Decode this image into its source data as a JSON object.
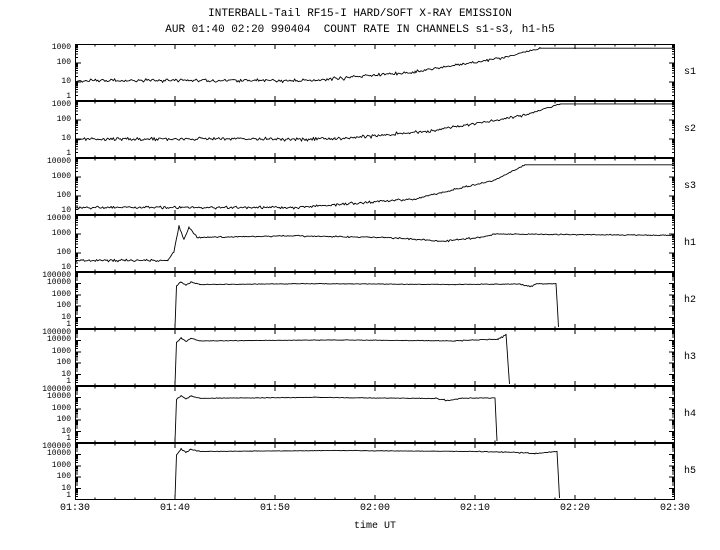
{
  "chart_data": {
    "type": "line",
    "y_scale": "log",
    "title": "INTERBALL-Tail RF15-I HARD/SOFT X-RAY EMISSION",
    "subtitle": "AUR 01:40 02:20 990404  COUNT RATE IN CHANNELS s1-s3, h1-h5",
    "line_color": "#000000",
    "background": "#ffffff",
    "x_axis": {
      "label": "time UT",
      "start_time": "01:30",
      "range_minutes": [
        0,
        60
      ],
      "ticks": [
        "01:30",
        "01:40",
        "01:50",
        "02:00",
        "02:10",
        "02:20",
        "02:30"
      ],
      "tick_minutes": [
        0,
        10,
        20,
        30,
        40,
        50,
        60
      ]
    },
    "panels": [
      {
        "label": "s1",
        "ylim": [
          1,
          1000
        ],
        "yticks": [
          1000,
          100,
          10,
          1
        ],
        "segments": [
          [
            0,
            24,
            12,
            12,
            0.09
          ],
          [
            24,
            34,
            12,
            35,
            0.09
          ],
          [
            34,
            43,
            35,
            200,
            0.07
          ],
          [
            43,
            46.5,
            200,
            600,
            0.04
          ],
          [
            46.5,
            60,
            600,
            600,
            0
          ]
        ]
      },
      {
        "label": "s2",
        "ylim": [
          1,
          1000
        ],
        "yticks": [
          1000,
          100,
          10,
          1
        ],
        "segments": [
          [
            0,
            26,
            10,
            10,
            0.09
          ],
          [
            26,
            36,
            10,
            28,
            0.09
          ],
          [
            36,
            45,
            28,
            180,
            0.07
          ],
          [
            45,
            48.5,
            180,
            700,
            0.04
          ],
          [
            48.5,
            60,
            700,
            700,
            0
          ]
        ]
      },
      {
        "label": "s3",
        "ylim": [
          10,
          10000
        ],
        "yticks": [
          10000,
          1000,
          100,
          10
        ],
        "segments": [
          [
            0,
            22,
            25,
            25,
            0.07
          ],
          [
            22,
            34,
            25,
            70,
            0.07
          ],
          [
            34,
            42,
            70,
            700,
            0.05
          ],
          [
            42,
            45,
            700,
            4400,
            0.03
          ],
          [
            45,
            60,
            4400,
            4400,
            0
          ]
        ]
      },
      {
        "label": "h1",
        "ylim": [
          10,
          10000
        ],
        "yticks": [
          10000,
          1000,
          100,
          10
        ],
        "segments": [
          [
            0,
            9.3,
            40,
            40,
            0.06
          ],
          [
            9.3,
            9.9,
            40,
            120,
            0.05
          ],
          [
            9.9,
            10.4,
            120,
            2800,
            0.03
          ],
          [
            10.4,
            10.9,
            2800,
            500,
            0.05
          ],
          [
            10.9,
            11.4,
            500,
            2200,
            0.04
          ],
          [
            11.4,
            12.2,
            2200,
            650,
            0.05
          ],
          [
            12.2,
            22,
            650,
            800,
            0.035
          ],
          [
            22,
            31,
            800,
            650,
            0.035
          ],
          [
            31,
            37,
            650,
            420,
            0.04
          ],
          [
            37,
            40.5,
            420,
            650,
            0.05
          ],
          [
            40.5,
            42,
            650,
            1000,
            0.04
          ],
          [
            42,
            60,
            1000,
            850,
            0.025
          ]
        ]
      },
      {
        "label": "h2",
        "ylim": [
          1,
          100000
        ],
        "yticks": [
          100000,
          10000,
          1000,
          100,
          10,
          1
        ],
        "segments": [
          [
            10,
            10.15,
            1.5,
            6000,
            0
          ],
          [
            10.15,
            10.6,
            6000,
            14000,
            0.05
          ],
          [
            10.6,
            11.1,
            14000,
            7000,
            0.06
          ],
          [
            11.1,
            11.6,
            7000,
            13000,
            0.05
          ],
          [
            11.6,
            12.5,
            13000,
            8000,
            0.04
          ],
          [
            12.5,
            24,
            8000,
            9500,
            0.025
          ],
          [
            24,
            38,
            9500,
            8000,
            0.025
          ],
          [
            38,
            44.5,
            8000,
            9000,
            0.03
          ],
          [
            44.5,
            45.5,
            9000,
            5000,
            0.07
          ],
          [
            45.5,
            46.2,
            5000,
            9000,
            0.06
          ],
          [
            46.2,
            48.1,
            9000,
            9500,
            0.03
          ],
          [
            48.1,
            48.35,
            9500,
            1.5,
            0
          ]
        ]
      },
      {
        "label": "h3",
        "ylim": [
          1,
          100000
        ],
        "yticks": [
          100000,
          10000,
          1000,
          100,
          10,
          1
        ],
        "segments": [
          [
            10,
            10.15,
            1.5,
            7000,
            0
          ],
          [
            10.15,
            10.6,
            7000,
            16000,
            0.05
          ],
          [
            10.6,
            11.1,
            16000,
            8000,
            0.06
          ],
          [
            11.1,
            11.6,
            8000,
            15000,
            0.05
          ],
          [
            11.6,
            12.5,
            15000,
            9000,
            0.04
          ],
          [
            12.5,
            26,
            9000,
            11000,
            0.025
          ],
          [
            26,
            38,
            11000,
            9000,
            0.025
          ],
          [
            38,
            42.3,
            9000,
            13000,
            0.04
          ],
          [
            42.3,
            43.1,
            13000,
            35000,
            0.1
          ],
          [
            43.1,
            43.45,
            35000,
            1.5,
            0
          ]
        ]
      },
      {
        "label": "h4",
        "ylim": [
          1,
          100000
        ],
        "yticks": [
          100000,
          10000,
          1000,
          100,
          10,
          1
        ],
        "segments": [
          [
            10,
            10.15,
            1.5,
            6500,
            0
          ],
          [
            10.15,
            10.6,
            6500,
            14000,
            0.05
          ],
          [
            10.6,
            11.1,
            14000,
            7500,
            0.06
          ],
          [
            11.1,
            11.6,
            7500,
            13000,
            0.05
          ],
          [
            11.6,
            12.5,
            13000,
            8500,
            0.04
          ],
          [
            12.5,
            24,
            8500,
            10000,
            0.025
          ],
          [
            24,
            36,
            10000,
            8000,
            0.025
          ],
          [
            36,
            37.5,
            8000,
            5500,
            0.08
          ],
          [
            37.5,
            38.5,
            5500,
            8500,
            0.06
          ],
          [
            38.5,
            42,
            8500,
            9000,
            0.03
          ],
          [
            42,
            42.2,
            9000,
            1.5,
            0
          ]
        ]
      },
      {
        "label": "h5",
        "ylim": [
          1,
          100000
        ],
        "yticks": [
          100000,
          10000,
          1000,
          100,
          10,
          1
        ],
        "segments": [
          [
            10,
            10.15,
            1.5,
            9000,
            0
          ],
          [
            10.15,
            10.6,
            9000,
            30000,
            0.05
          ],
          [
            10.6,
            11.1,
            30000,
            15000,
            0.06
          ],
          [
            11.1,
            11.6,
            15000,
            28000,
            0.05
          ],
          [
            11.6,
            12.5,
            28000,
            18000,
            0.04
          ],
          [
            12.5,
            26,
            18000,
            22000,
            0.02
          ],
          [
            26,
            40,
            22000,
            18000,
            0.02
          ],
          [
            40,
            44,
            18000,
            15000,
            0.04
          ],
          [
            44,
            46,
            15000,
            12000,
            0.05
          ],
          [
            46,
            48.2,
            12000,
            18000,
            0.04
          ],
          [
            48.2,
            48.45,
            18000,
            1.5,
            0
          ]
        ]
      }
    ]
  }
}
